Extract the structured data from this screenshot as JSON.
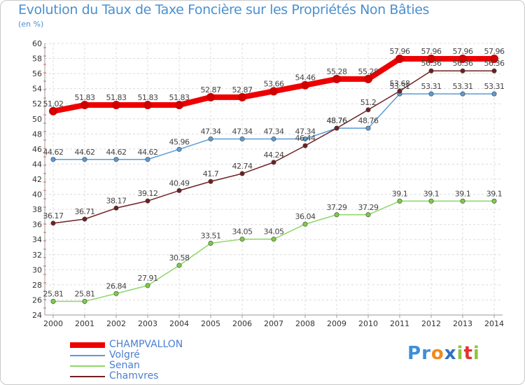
{
  "title": "Evolution du Taux de Taxe Foncière sur les Propriétés Non Bâties",
  "unit_label": "(en %)",
  "logo_text": "Proxiti",
  "chart_data": {
    "type": "line",
    "x": [
      "2000",
      "2001",
      "2002",
      "2003",
      "2004",
      "2005",
      "2006",
      "2007",
      "2008",
      "2009",
      "2010",
      "2011",
      "2012",
      "2013",
      "2014"
    ],
    "ylim": [
      24,
      60
    ],
    "y_ticks": [
      24,
      26,
      28,
      30,
      32,
      34,
      36,
      38,
      40,
      42,
      44,
      46,
      48,
      50,
      52,
      54,
      56,
      58,
      60
    ],
    "grid": true,
    "legend_position": "bottom-left",
    "series": [
      {
        "name": "CHAMPVALLON",
        "color": "#ee0000",
        "values": [
          51.02,
          51.83,
          51.83,
          51.83,
          51.83,
          52.87,
          52.87,
          53.66,
          54.46,
          55.28,
          55.28,
          57.96,
          57.96,
          57.96,
          57.96
        ],
        "labels": [
          "51.02",
          "51.83",
          "51.83",
          "51.83",
          "51.83",
          "52.87",
          "52.87",
          "53.66",
          "54.46",
          "55.28",
          "55.28",
          "57.96",
          "57.96",
          "57.96",
          "57.96"
        ]
      },
      {
        "name": "Volgré",
        "color": "#5b9bd5",
        "values": [
          44.62,
          44.62,
          44.62,
          44.62,
          45.96,
          47.34,
          47.34,
          47.34,
          47.34,
          48.76,
          48.76,
          53.31,
          53.31,
          53.31,
          53.31
        ],
        "labels": [
          "44.62",
          "44.62",
          "44.62",
          "44.62",
          "45.96",
          "47.34",
          "47.34",
          "47.34",
          "47.34",
          "48.76",
          "48.76",
          "53.31",
          "53.31",
          "53.31",
          "53.31"
        ]
      },
      {
        "name": "Senan",
        "color": "#8fd66a",
        "values": [
          25.81,
          25.81,
          26.84,
          27.91,
          30.58,
          33.51,
          34.05,
          34.05,
          36.04,
          37.29,
          37.29,
          39.1,
          39.1,
          39.1,
          39.1
        ],
        "labels": [
          "25.81",
          "25.81",
          "26.84",
          "27.91",
          "30.58",
          "33.51",
          "34.05",
          "34.05",
          "36.04",
          "37.29",
          "37.29",
          "39.1",
          "39.1",
          "39.1",
          "39.1"
        ]
      },
      {
        "name": "Chamvres",
        "color": "#6e2020",
        "values": [
          36.17,
          36.71,
          38.17,
          39.12,
          40.49,
          41.7,
          42.74,
          44.24,
          46.44,
          48.76,
          51.2,
          53.68,
          56.36,
          56.36,
          56.36
        ],
        "labels": [
          "36.17",
          "36.71",
          "38.17",
          "39.12",
          "40.49",
          "41.7",
          "42.74",
          "44.24",
          "46.44",
          "48.76",
          "51.2",
          "53.68",
          "56.36",
          "56.36",
          "56.36"
        ]
      }
    ]
  }
}
